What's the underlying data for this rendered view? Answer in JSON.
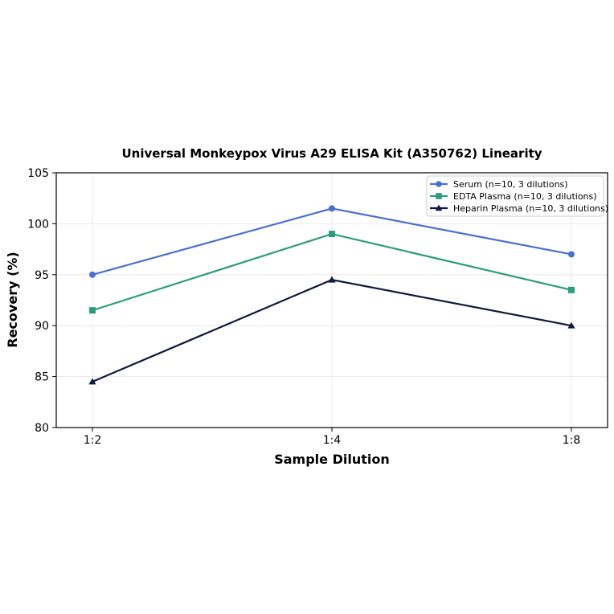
{
  "chart_data": {
    "type": "line",
    "title": "Universal Monkeypox Virus A29 ELISA Kit (A350762) Linearity",
    "xlabel": "Sample Dilution",
    "ylabel": "Recovery (%)",
    "categories": [
      "1:2",
      "1:4",
      "1:8"
    ],
    "ylim": [
      80,
      105
    ],
    "yticks": [
      "80",
      "85",
      "90",
      "95",
      "100",
      "105"
    ],
    "grid": true,
    "legend_position": "top-right",
    "series": [
      {
        "name": "Serum (n=10, 3 dilutions)",
        "values": [
          95,
          101.5,
          97
        ],
        "color": "#4a6fd0",
        "marker": "circle"
      },
      {
        "name": "EDTA Plasma (n=10, 3 dilutions)",
        "values": [
          91.5,
          99,
          93.5
        ],
        "color": "#2a9d7c",
        "marker": "square"
      },
      {
        "name": "Heparin Plasma (n=10, 3 dilutions)",
        "values": [
          84.5,
          94.5,
          90
        ],
        "color": "#101a3e",
        "marker": "triangle"
      }
    ]
  }
}
